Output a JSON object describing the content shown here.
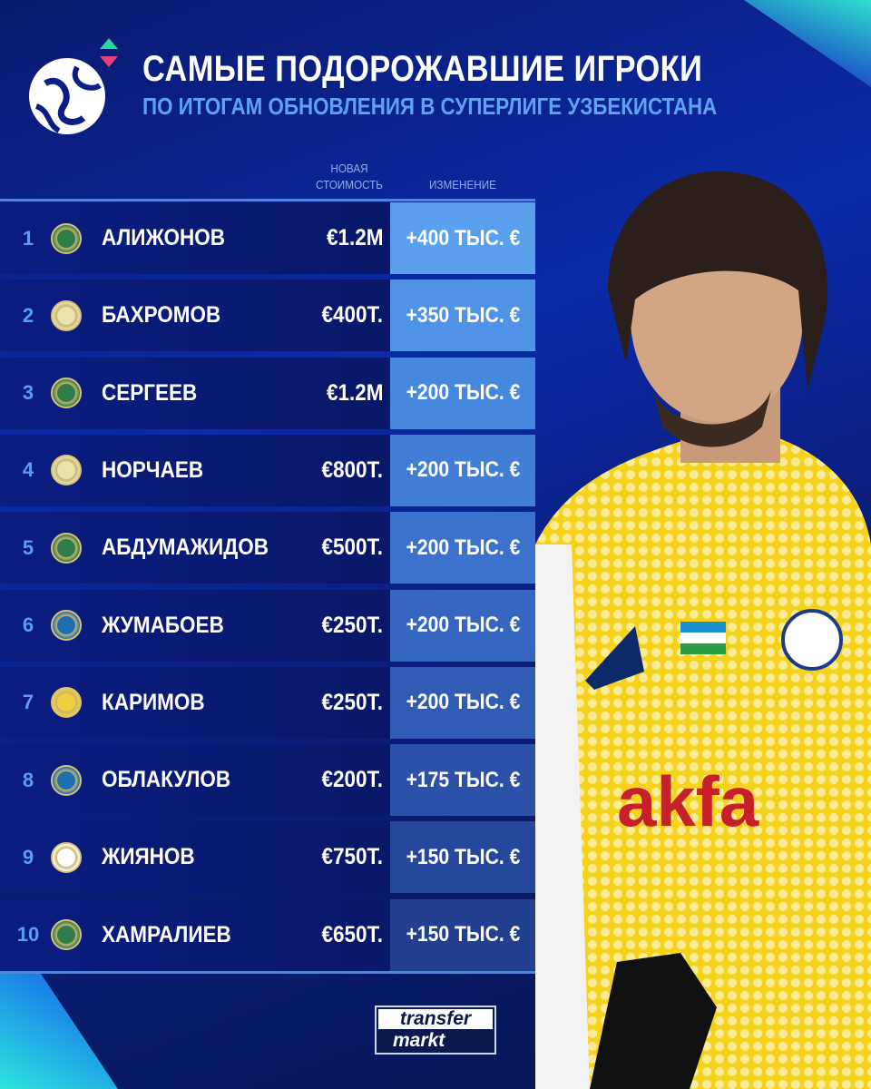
{
  "header": {
    "title": "САМЫЕ ПОДОРОЖАВШИЕ ИГРОКИ",
    "subtitle": "ПО ИТОГАМ ОБНОВЛЕНИЯ В СУПЕРЛИГЕ УЗБЕКИСТАНА"
  },
  "columns": {
    "value_line1": "НОВАЯ",
    "value_line2": "СТОИМОСТЬ",
    "change": "ИЗМЕНЕНИЕ"
  },
  "rows": [
    {
      "rank": "1",
      "name": "АЛИЖОНОВ",
      "value": "€1.2M",
      "change": "+400 ТЫС. €",
      "club_color": "#2f7d4a"
    },
    {
      "rank": "2",
      "name": "БАХРОМОВ",
      "value": "€400T.",
      "change": "+350 ТЫС. €",
      "club_color": "#e8e2b0"
    },
    {
      "rank": "3",
      "name": "СЕРГЕЕВ",
      "value": "€1.2M",
      "change": "+200 ТЫС. €",
      "club_color": "#2f7d4a"
    },
    {
      "rank": "4",
      "name": "НОРЧАЕВ",
      "value": "€800T.",
      "change": "+200 ТЫС. €",
      "club_color": "#e8e2b0"
    },
    {
      "rank": "5",
      "name": "АБДУМАЖИДОВ",
      "value": "€500T.",
      "change": "+200 ТЫС. €",
      "club_color": "#2f7d4a"
    },
    {
      "rank": "6",
      "name": "ЖУМАБОЕВ",
      "value": "€250T.",
      "change": "+200 ТЫС. €",
      "club_color": "#1e6fb0"
    },
    {
      "rank": "7",
      "name": "КАРИМОВ",
      "value": "€250T.",
      "change": "+200 ТЫС. €",
      "club_color": "#f0d040"
    },
    {
      "rank": "8",
      "name": "ОБЛАКУЛОВ",
      "value": "€200T.",
      "change": "+175 ТЫС. €",
      "club_color": "#1e6fb0"
    },
    {
      "rank": "9",
      "name": "ЖИЯНОВ",
      "value": "€750T.",
      "change": "+150 ТЫС. €",
      "club_color": "#ffffff"
    },
    {
      "rank": "10",
      "name": "ХАМРАЛИЕВ",
      "value": "€650T.",
      "change": "+150 ТЫС. €",
      "club_color": "#2f7d4a"
    }
  ],
  "change_colors": [
    "#5aa0ec",
    "#4e93e6",
    "#4788df",
    "#427dd6",
    "#3c72cc",
    "#3667c0",
    "#305cb4",
    "#2b52a8",
    "#26489c",
    "#223f90"
  ],
  "photo": {
    "jersey_text": "akfa",
    "jersey_color": "#f5d21c"
  },
  "brand": {
    "line1": "transfer",
    "line2": "markt"
  }
}
